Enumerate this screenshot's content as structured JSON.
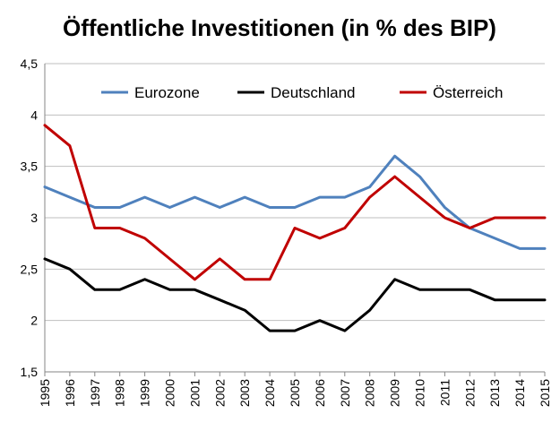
{
  "chart_data": {
    "type": "line",
    "title": "Öffentliche Investitionen (in % des BIP)",
    "xlabel": "",
    "ylabel": "",
    "x": [
      "1995",
      "1996",
      "1997",
      "1998",
      "1999",
      "2000",
      "2001",
      "2002",
      "2003",
      "2004",
      "2005",
      "2006",
      "2007",
      "2008",
      "2009",
      "2010",
      "2011",
      "2012",
      "2013",
      "2014",
      "2015"
    ],
    "ylim": [
      1.5,
      4.5
    ],
    "yticks": [
      "1,5",
      "2",
      "2,5",
      "3",
      "3,5",
      "4",
      "4,5"
    ],
    "ytick_values": [
      1.5,
      2,
      2.5,
      3,
      3.5,
      4,
      4.5
    ],
    "grid": true,
    "legend_position": "top",
    "series": [
      {
        "name": "Eurozone",
        "color": "#4f81bd",
        "values": [
          3.3,
          3.2,
          3.1,
          3.1,
          3.2,
          3.1,
          3.2,
          3.1,
          3.2,
          3.1,
          3.1,
          3.2,
          3.2,
          3.3,
          3.6,
          3.4,
          3.1,
          2.9,
          2.8,
          2.7,
          2.7
        ]
      },
      {
        "name": "Deutschland",
        "color": "#000000",
        "values": [
          2.6,
          2.5,
          2.3,
          2.3,
          2.4,
          2.3,
          2.3,
          2.2,
          2.1,
          1.9,
          1.9,
          2.0,
          1.9,
          2.1,
          2.4,
          2.3,
          2.3,
          2.3,
          2.2,
          2.2,
          2.2
        ]
      },
      {
        "name": "Österreich",
        "color": "#c00000",
        "values": [
          3.9,
          3.7,
          2.9,
          2.9,
          2.8,
          2.6,
          2.4,
          2.6,
          2.4,
          2.4,
          2.9,
          2.8,
          2.9,
          3.2,
          3.4,
          3.2,
          3.0,
          2.9,
          3.0,
          3.0,
          3.0
        ]
      }
    ]
  }
}
